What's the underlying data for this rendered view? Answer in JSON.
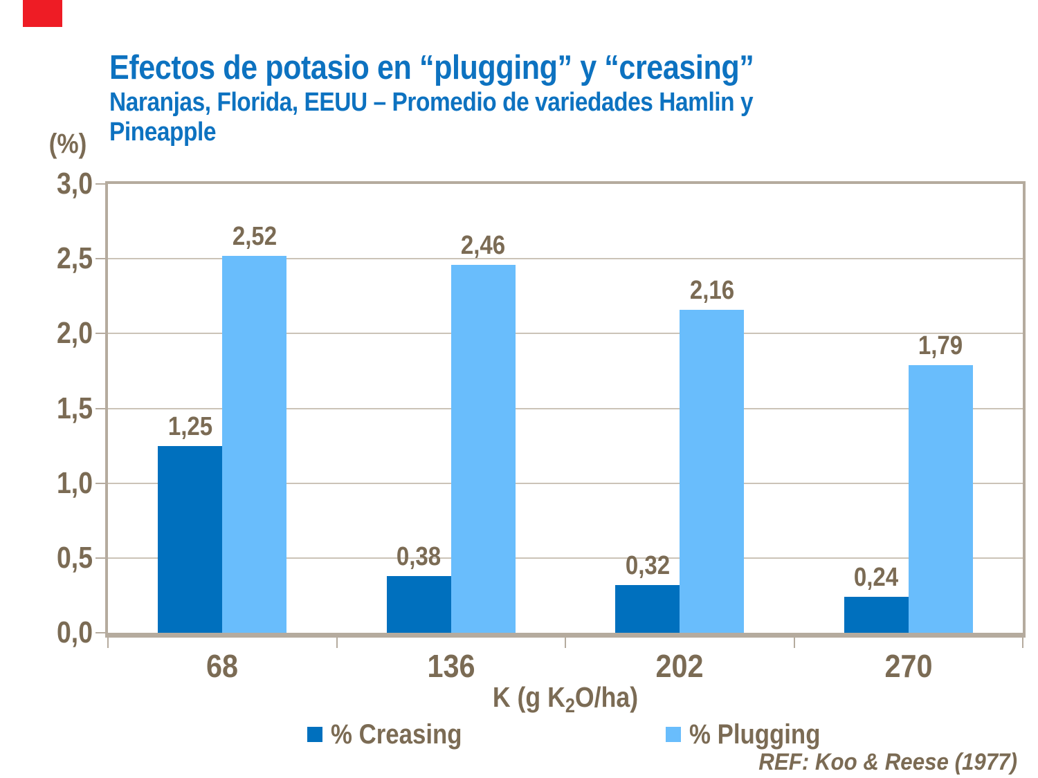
{
  "chart_data": {
    "type": "bar",
    "title": "Efectos de potasio en “plugging” y “creasing”",
    "subtitle": "Naranjas, Florida, EEUU – Promedio de variedades Hamlin y Pineapple",
    "subtitle_lines": [
      "Naranjas, Florida, EEUU – Promedio de variedades Hamlin y",
      "Pineapple"
    ],
    "ylabel": "(%)",
    "xlabel": "K (g K2O/ha)",
    "xlabel_parts": {
      "prefix": "K (g K",
      "sub": "2",
      "suffix": "O/ha)"
    },
    "categories": [
      "68",
      "136",
      "202",
      "270"
    ],
    "series": [
      {
        "name": "% Creasing",
        "color": "#0070be",
        "values": [
          1.25,
          0.38,
          0.32,
          0.24
        ],
        "labels": [
          "1,25",
          "0,38",
          "0,32",
          "0,24"
        ]
      },
      {
        "name": "% Plugging",
        "color": "#69bdfc",
        "values": [
          2.52,
          2.46,
          2.16,
          1.79
        ],
        "labels": [
          "2,52",
          "2,46",
          "2,16",
          "1,79"
        ]
      }
    ],
    "ylim": [
      0,
      3
    ],
    "ytick_step": 0.5,
    "ytick_labels": [
      "3,0",
      "2,5",
      "2,0",
      "1,5",
      "1,0",
      "0,5",
      "0,0"
    ],
    "grid": true,
    "legend_position": "bottom",
    "footer": "REF: Koo & Reese (1977)"
  },
  "colors": {
    "title_blue": "#0d72c0",
    "text_brown": "#7b6b54",
    "creasing_dark_blue": "#0070be",
    "plugging_light_blue": "#69bdfc",
    "frame_gray": "#b5ab9e",
    "gridline_gray": "#cbc3b7",
    "corner_red": "#ee1c25"
  }
}
